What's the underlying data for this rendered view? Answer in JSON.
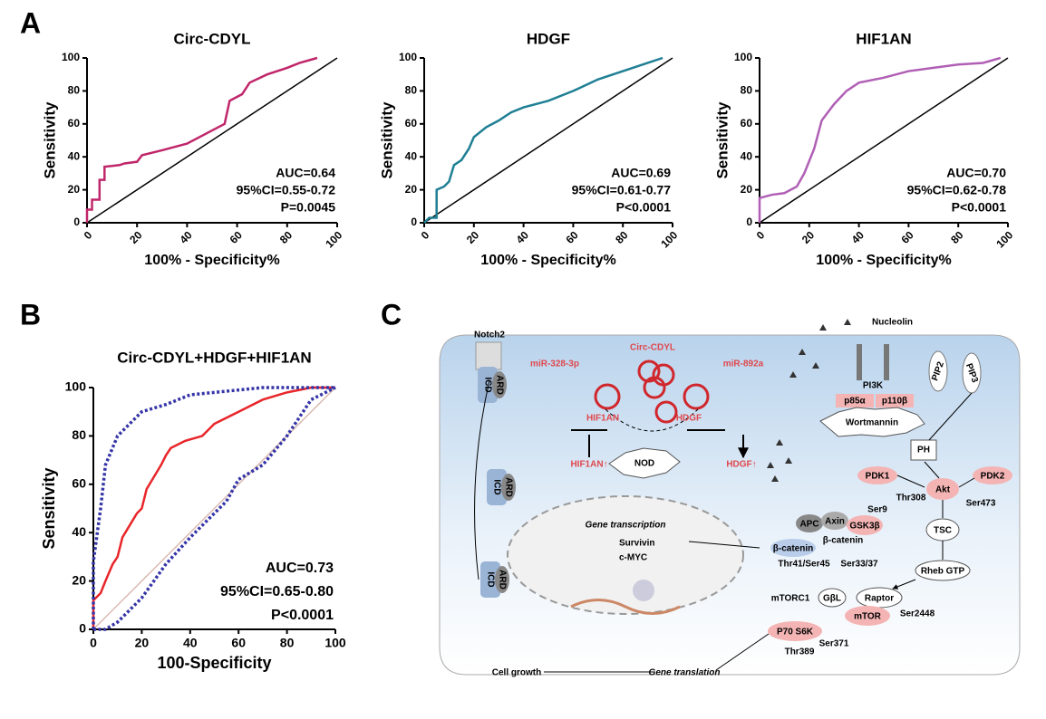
{
  "panels": [
    "A",
    "B",
    "C"
  ],
  "chart_data": [
    {
      "type": "line",
      "title": "Circ-CDYL",
      "xlabel": "100% - Specificity%",
      "ylabel": "Sensitivity",
      "xlim": [
        0,
        100
      ],
      "ylim": [
        0,
        100
      ],
      "xticks": [
        0,
        20,
        40,
        60,
        80,
        100
      ],
      "yticks": [
        0,
        20,
        40,
        60,
        80,
        100
      ],
      "diagonal": "#000000",
      "annotations": [
        "AUC=0.64",
        "95%CI=0.55-0.72",
        "P=0.0045"
      ],
      "series": [
        {
          "color": "#c0266a",
          "x": [
            0,
            0,
            2,
            2,
            5,
            5,
            7,
            7,
            13,
            15,
            20,
            22,
            30,
            40,
            50,
            55,
            57,
            62,
            65,
            72,
            80,
            85,
            92
          ],
          "values": [
            0,
            8,
            8,
            14,
            14,
            26,
            26,
            34,
            35,
            36,
            37,
            41,
            44,
            48,
            56,
            60,
            74,
            78,
            85,
            90,
            94,
            97,
            100
          ]
        }
      ]
    },
    {
      "type": "line",
      "title": "HDGF",
      "xlabel": "100% - Specificity%",
      "ylabel": "Sensitivity",
      "xlim": [
        0,
        100
      ],
      "ylim": [
        0,
        100
      ],
      "xticks": [
        0,
        20,
        40,
        60,
        80,
        100
      ],
      "yticks": [
        0,
        20,
        40,
        60,
        80,
        100
      ],
      "diagonal": "#000000",
      "annotations": [
        "AUC=0.69",
        "95%CI=0.61-0.77",
        "P<0.0001"
      ],
      "series": [
        {
          "color": "#1f7f94",
          "x": [
            0,
            2,
            5,
            5,
            8,
            10,
            12,
            15,
            18,
            20,
            25,
            30,
            35,
            40,
            50,
            60,
            70,
            80,
            90,
            96
          ],
          "values": [
            0,
            3,
            3,
            20,
            22,
            25,
            35,
            38,
            45,
            52,
            58,
            62,
            67,
            70,
            74,
            80,
            87,
            92,
            97,
            100
          ]
        }
      ]
    },
    {
      "type": "line",
      "title": "HIF1AN",
      "xlabel": "100% - Specificity%",
      "ylabel": "Sensitivity",
      "xlim": [
        0,
        100
      ],
      "ylim": [
        0,
        100
      ],
      "xticks": [
        0,
        20,
        40,
        60,
        80,
        100
      ],
      "yticks": [
        0,
        20,
        40,
        60,
        80,
        100
      ],
      "diagonal": "#000000",
      "annotations": [
        "AUC=0.70",
        "95%CI=0.62-0.78",
        "P<0.0001"
      ],
      "series": [
        {
          "color": "#b05fb5",
          "x": [
            0,
            0,
            5,
            10,
            15,
            18,
            22,
            25,
            30,
            35,
            40,
            50,
            60,
            70,
            80,
            90,
            97
          ],
          "values": [
            0,
            15,
            17,
            18,
            22,
            30,
            45,
            62,
            72,
            80,
            85,
            88,
            92,
            94,
            96,
            97,
            100
          ]
        }
      ]
    },
    {
      "type": "line",
      "title": "Circ-CDYL+HDGF+HIF1AN",
      "xlabel": "100-Specificity",
      "ylabel": "Sensitivity",
      "xlim": [
        0,
        100
      ],
      "ylim": [
        0,
        100
      ],
      "xticks": [
        0,
        20,
        40,
        60,
        80,
        100
      ],
      "yticks": [
        0,
        20,
        40,
        60,
        80,
        100
      ],
      "diagonal": "#d9b9b0",
      "annotations": [
        "AUC=0.73",
        "95%CI=0.65-0.80",
        "P<0.0001"
      ],
      "series": [
        {
          "color": "#e8262a",
          "x": [
            0,
            0,
            3,
            5,
            8,
            10,
            12,
            15,
            18,
            20,
            22,
            25,
            28,
            30,
            32,
            38,
            45,
            50,
            60,
            70,
            80,
            90,
            100
          ],
          "values": [
            0,
            12,
            15,
            20,
            27,
            30,
            38,
            43,
            48,
            50,
            58,
            63,
            68,
            72,
            75,
            78,
            80,
            85,
            90,
            95,
            98,
            100,
            100
          ]
        },
        {
          "color": "#3535a8",
          "dotted": true,
          "x": [
            0,
            0,
            3,
            5,
            10,
            15,
            20,
            30,
            40,
            50,
            70,
            100
          ],
          "values": [
            0,
            28,
            50,
            68,
            80,
            85,
            90,
            93,
            97,
            98,
            100,
            100
          ]
        },
        {
          "color": "#3535a8",
          "dotted": true,
          "x": [
            0,
            5,
            10,
            15,
            20,
            25,
            30,
            40,
            50,
            55,
            60,
            70,
            80,
            90,
            100
          ],
          "values": [
            0,
            0,
            3,
            8,
            13,
            20,
            27,
            38,
            48,
            53,
            62,
            68,
            80,
            95,
            100
          ]
        }
      ]
    }
  ],
  "diagram": {
    "labels": [
      "Notch2",
      "ICD",
      "ARD",
      "Circ-CDYL",
      "miR-328-3p",
      "miR-892a",
      "HIF1AN",
      "HDGF",
      "HIF1AN↑",
      "HDGF↑",
      "NOD",
      "Nucleolin",
      "PI3K",
      "p85α",
      "p110β",
      "PIP2",
      "PIP3",
      "Wortmannin",
      "PH",
      "PDK1",
      "PDK2",
      "Akt",
      "Thr308",
      "Ser473",
      "Ser9",
      "APC",
      "Axin",
      "GSK3β",
      "β-catenin",
      "TSC",
      "Gene transcription",
      "Survivin",
      "c-MYC",
      "β-catenin",
      "Thr41/Ser45",
      "Ser33/37",
      "Rheb GTP",
      "mTORC1",
      "GβL",
      "Raptor",
      "mTOR",
      "Ser2448",
      "P70 S6K",
      "Ser371",
      "Thr389",
      "Cell growth",
      "Gene translation",
      "ICD",
      "ARD",
      "ICD",
      "ARD"
    ]
  }
}
